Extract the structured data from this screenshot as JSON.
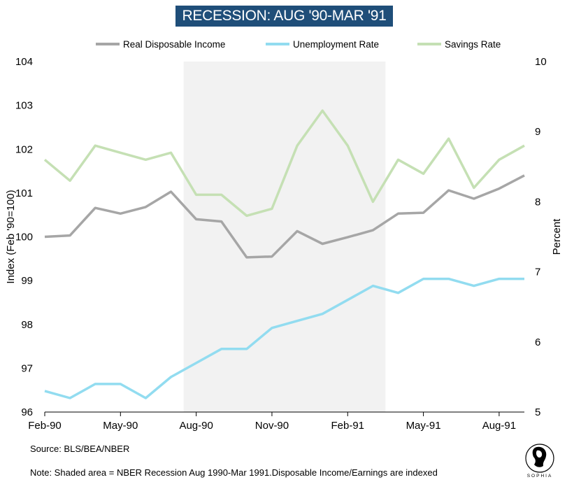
{
  "chart_data": {
    "type": "line",
    "title": "RECESSION: AUG '90-MAR '91",
    "categories": [
      "Feb-90",
      "Mar-90",
      "Apr-90",
      "May-90",
      "Jun-90",
      "Jul-90",
      "Aug-90",
      "Sep-90",
      "Oct-90",
      "Nov-90",
      "Dec-90",
      "Jan-91",
      "Feb-91",
      "Mar-91",
      "Apr-91",
      "May-91",
      "Jun-91",
      "Jul-91",
      "Aug-91",
      "Sep-91"
    ],
    "xtick_labels": [
      "Feb-90",
      "May-90",
      "Aug-90",
      "Nov-90",
      "Feb-91",
      "May-91",
      "Aug-91"
    ],
    "xtick_indices": [
      0,
      3,
      6,
      9,
      12,
      15,
      18
    ],
    "y_left": {
      "label": "Index (Feb '90=100)",
      "ylim": [
        96,
        104
      ],
      "ticks": [
        96,
        97,
        98,
        99,
        100,
        101,
        102,
        103,
        104
      ]
    },
    "y_right": {
      "label": "Percent",
      "ylim": [
        5,
        10
      ],
      "ticks": [
        5,
        6,
        7,
        8,
        9,
        10
      ]
    },
    "shaded_region": {
      "label": "NBER Recession",
      "start": "Aug-90",
      "end": "Mar-91",
      "start_index": 5.5,
      "end_index": 13.5
    },
    "series": [
      {
        "name": "Real Disposable Income",
        "axis": "left",
        "color": "#a6a6a6",
        "values": [
          100.0,
          100.03,
          100.66,
          100.53,
          100.68,
          101.03,
          100.4,
          100.35,
          99.53,
          99.55,
          100.13,
          99.84,
          99.99,
          100.15,
          100.53,
          100.55,
          101.06,
          100.87,
          101.1,
          101.4
        ]
      },
      {
        "name": "Unemployment Rate",
        "axis": "right",
        "color": "#92dcf0",
        "values": [
          5.3,
          5.2,
          5.4,
          5.4,
          5.2,
          5.5,
          5.7,
          5.9,
          5.9,
          6.2,
          6.3,
          6.4,
          6.6,
          6.8,
          6.7,
          6.9,
          6.9,
          6.8,
          6.9,
          6.9
        ]
      },
      {
        "name": "Savings Rate",
        "axis": "right",
        "color": "#c5e0b4",
        "values": [
          8.6,
          8.3,
          8.8,
          8.7,
          8.6,
          8.7,
          8.1,
          8.1,
          7.8,
          7.9,
          8.8,
          9.3,
          8.8,
          8.0,
          8.6,
          8.4,
          8.9,
          8.2,
          8.6,
          8.8
        ]
      }
    ]
  },
  "footer": {
    "source": "Source: BLS/BEA/NBER",
    "note": "Note: Shaded area = NBER Recession Aug 1990-Mar 1991.Disposable Income/Earnings are indexed"
  },
  "logo": {
    "text": "SOPHIA"
  },
  "colors": {
    "title_bg": "#1f4e79",
    "shade": "#f2f2f2"
  }
}
